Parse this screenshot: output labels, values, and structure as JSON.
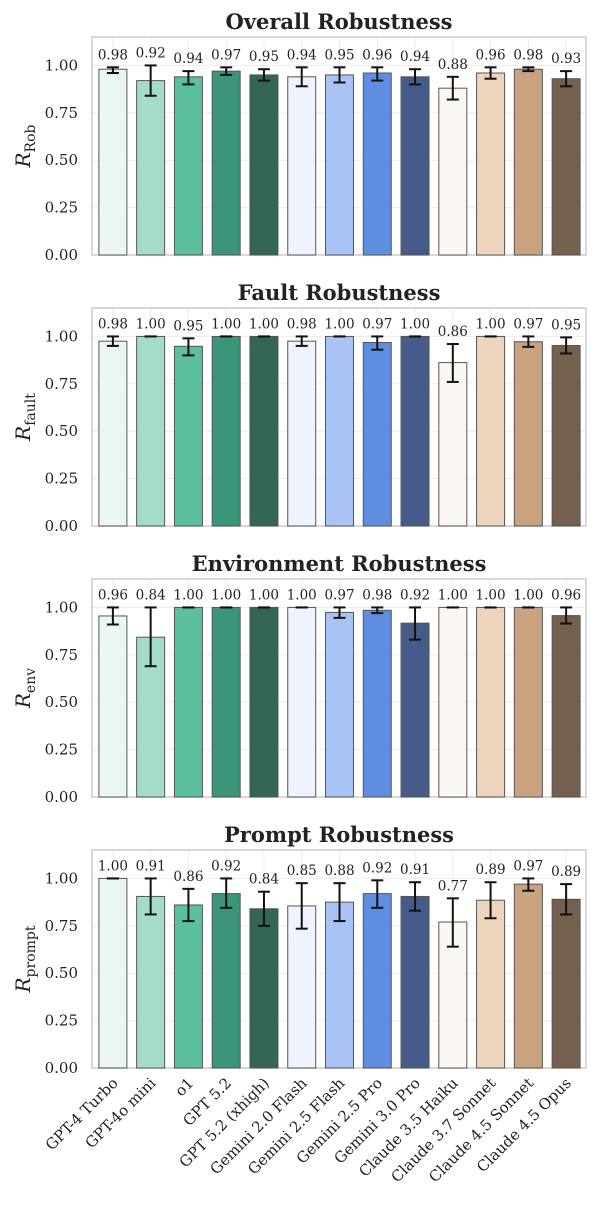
{
  "chart_data": [
    {
      "type": "bar",
      "title": "Overall Robustness",
      "ylabel": "R",
      "ylabel_sub": "Rob",
      "ylim": [
        0,
        1.15
      ],
      "yticks": [
        "0.00",
        "0.25",
        "0.50",
        "0.75",
        "1.00"
      ],
      "categories": [
        "GPT-4 Turbo",
        "GPT-4o mini",
        "o1",
        "GPT 5.2",
        "GPT 5.2 (xhigh)",
        "Gemini 2.0 Flash",
        "Gemini 2.5 Flash",
        "Gemini 2.5 Pro",
        "Gemini 3.0 Pro",
        "Claude 3.5 Haiku",
        "Claude 3.7 Sonnet",
        "Claude 4.5 Sonnet",
        "Claude 4.5 Opus"
      ],
      "values": [
        0.98,
        0.92,
        0.94,
        0.97,
        0.95,
        0.94,
        0.95,
        0.96,
        0.94,
        0.88,
        0.96,
        0.98,
        0.93
      ],
      "value_labels": [
        "0.98",
        "0.92",
        "0.94",
        "0.97",
        "0.95",
        "0.94",
        "0.95",
        "0.96",
        "0.94",
        "0.88",
        "0.96",
        "0.98",
        "0.93"
      ],
      "err_low": [
        0.96,
        0.84,
        0.9,
        0.95,
        0.92,
        0.89,
        0.91,
        0.92,
        0.9,
        0.82,
        0.93,
        0.97,
        0.89
      ],
      "err_high": [
        0.99,
        1.0,
        0.97,
        0.99,
        0.98,
        0.99,
        0.99,
        0.99,
        0.98,
        0.94,
        0.99,
        0.99,
        0.97
      ],
      "grid": true,
      "legend": "none"
    },
    {
      "type": "bar",
      "title": "Fault Robustness",
      "ylabel": "R",
      "ylabel_sub": "fault",
      "ylim": [
        0,
        1.15
      ],
      "yticks": [
        "0.00",
        "0.25",
        "0.50",
        "0.75",
        "1.00"
      ],
      "categories": [
        "GPT-4 Turbo",
        "GPT-4o mini",
        "o1",
        "GPT 5.2",
        "GPT 5.2 (xhigh)",
        "Gemini 2.0 Flash",
        "Gemini 2.5 Flash",
        "Gemini 2.5 Pro",
        "Gemini 3.0 Pro",
        "Claude 3.5 Haiku",
        "Claude 3.7 Sonnet",
        "Claude 4.5 Sonnet",
        "Claude 4.5 Opus"
      ],
      "values": [
        0.975,
        1.0,
        0.948,
        1.0,
        1.0,
        0.975,
        1.0,
        0.968,
        1.0,
        0.862,
        1.0,
        0.972,
        0.952
      ],
      "value_labels": [
        "0.98",
        "1.00",
        "0.95",
        "1.00",
        "1.00",
        "0.98",
        "1.00",
        "0.97",
        "1.00",
        "0.86",
        "1.00",
        "0.97",
        "0.95"
      ],
      "err_low": [
        0.95,
        1.0,
        0.9,
        1.0,
        1.0,
        0.95,
        1.0,
        0.93,
        1.0,
        0.76,
        1.0,
        0.945,
        0.91
      ],
      "err_high": [
        1.0,
        1.0,
        0.99,
        1.0,
        1.0,
        1.0,
        1.0,
        1.0,
        1.0,
        0.96,
        1.0,
        1.0,
        0.995
      ],
      "grid": true,
      "legend": "none"
    },
    {
      "type": "bar",
      "title": "Environment Robustness",
      "ylabel": "R",
      "ylabel_sub": "env",
      "ylim": [
        0,
        1.15
      ],
      "yticks": [
        "0.00",
        "0.25",
        "0.50",
        "0.75",
        "1.00"
      ],
      "categories": [
        "GPT-4 Turbo",
        "GPT-4o mini",
        "o1",
        "GPT 5.2",
        "GPT 5.2 (xhigh)",
        "Gemini 2.0 Flash",
        "Gemini 2.5 Flash",
        "Gemini 2.5 Pro",
        "Gemini 3.0 Pro",
        "Claude 3.5 Haiku",
        "Claude 3.7 Sonnet",
        "Claude 4.5 Sonnet",
        "Claude 4.5 Opus"
      ],
      "values": [
        0.955,
        0.843,
        1.0,
        1.0,
        1.0,
        1.0,
        0.974,
        0.985,
        0.917,
        1.0,
        1.0,
        1.0,
        0.957
      ],
      "value_labels": [
        "0.96",
        "0.84",
        "1.00",
        "1.00",
        "1.00",
        "1.00",
        "0.97",
        "0.98",
        "0.92",
        "1.00",
        "1.00",
        "1.00",
        "0.96"
      ],
      "err_low": [
        0.91,
        0.69,
        1.0,
        1.0,
        1.0,
        1.0,
        0.945,
        0.97,
        0.83,
        1.0,
        1.0,
        1.0,
        0.915
      ],
      "err_high": [
        1.0,
        1.0,
        1.0,
        1.0,
        1.0,
        1.0,
        1.0,
        1.0,
        1.0,
        1.0,
        1.0,
        1.0,
        1.0
      ],
      "grid": true,
      "legend": "none"
    },
    {
      "type": "bar",
      "title": "Prompt Robustness",
      "ylabel": "R",
      "ylabel_sub": "prompt",
      "ylim": [
        0,
        1.15
      ],
      "yticks": [
        "0.00",
        "0.25",
        "0.50",
        "0.75",
        "1.00"
      ],
      "categories": [
        "GPT-4 Turbo",
        "GPT-4o mini",
        "o1",
        "GPT 5.2",
        "GPT 5.2 (xhigh)",
        "Gemini 2.0 Flash",
        "Gemini 2.5 Flash",
        "Gemini 2.5 Pro",
        "Gemini 3.0 Pro",
        "Claude 3.5 Haiku",
        "Claude 3.7 Sonnet",
        "Claude 4.5 Sonnet",
        "Claude 4.5 Opus"
      ],
      "values": [
        1.0,
        0.905,
        0.86,
        0.92,
        0.84,
        0.855,
        0.875,
        0.92,
        0.905,
        0.77,
        0.885,
        0.97,
        0.89
      ],
      "value_labels": [
        "1.00",
        "0.91",
        "0.86",
        "0.92",
        "0.84",
        "0.85",
        "0.88",
        "0.92",
        "0.91",
        "0.77",
        "0.89",
        "0.97",
        "0.89"
      ],
      "err_low": [
        1.0,
        0.81,
        0.775,
        0.845,
        0.75,
        0.735,
        0.775,
        0.845,
        0.83,
        0.64,
        0.79,
        0.935,
        0.81
      ],
      "err_high": [
        1.0,
        1.0,
        0.945,
        1.0,
        0.93,
        0.975,
        0.975,
        0.99,
        0.98,
        0.895,
        0.98,
        1.0,
        0.97
      ],
      "grid": true,
      "legend": "none"
    }
  ],
  "colors": {
    "bars": [
      "#eaf7f2",
      "#a3dccb",
      "#5cbf9f",
      "#3a957a",
      "#336655",
      "#eef3fd",
      "#a9c4f4",
      "#5f8ee0",
      "#475b8a",
      "#fbf8f3",
      "#ecd4bd",
      "#c9a27f",
      "#74604f"
    ],
    "edge": "#555555",
    "grid": "#ececec",
    "frame": "#cccccc"
  }
}
